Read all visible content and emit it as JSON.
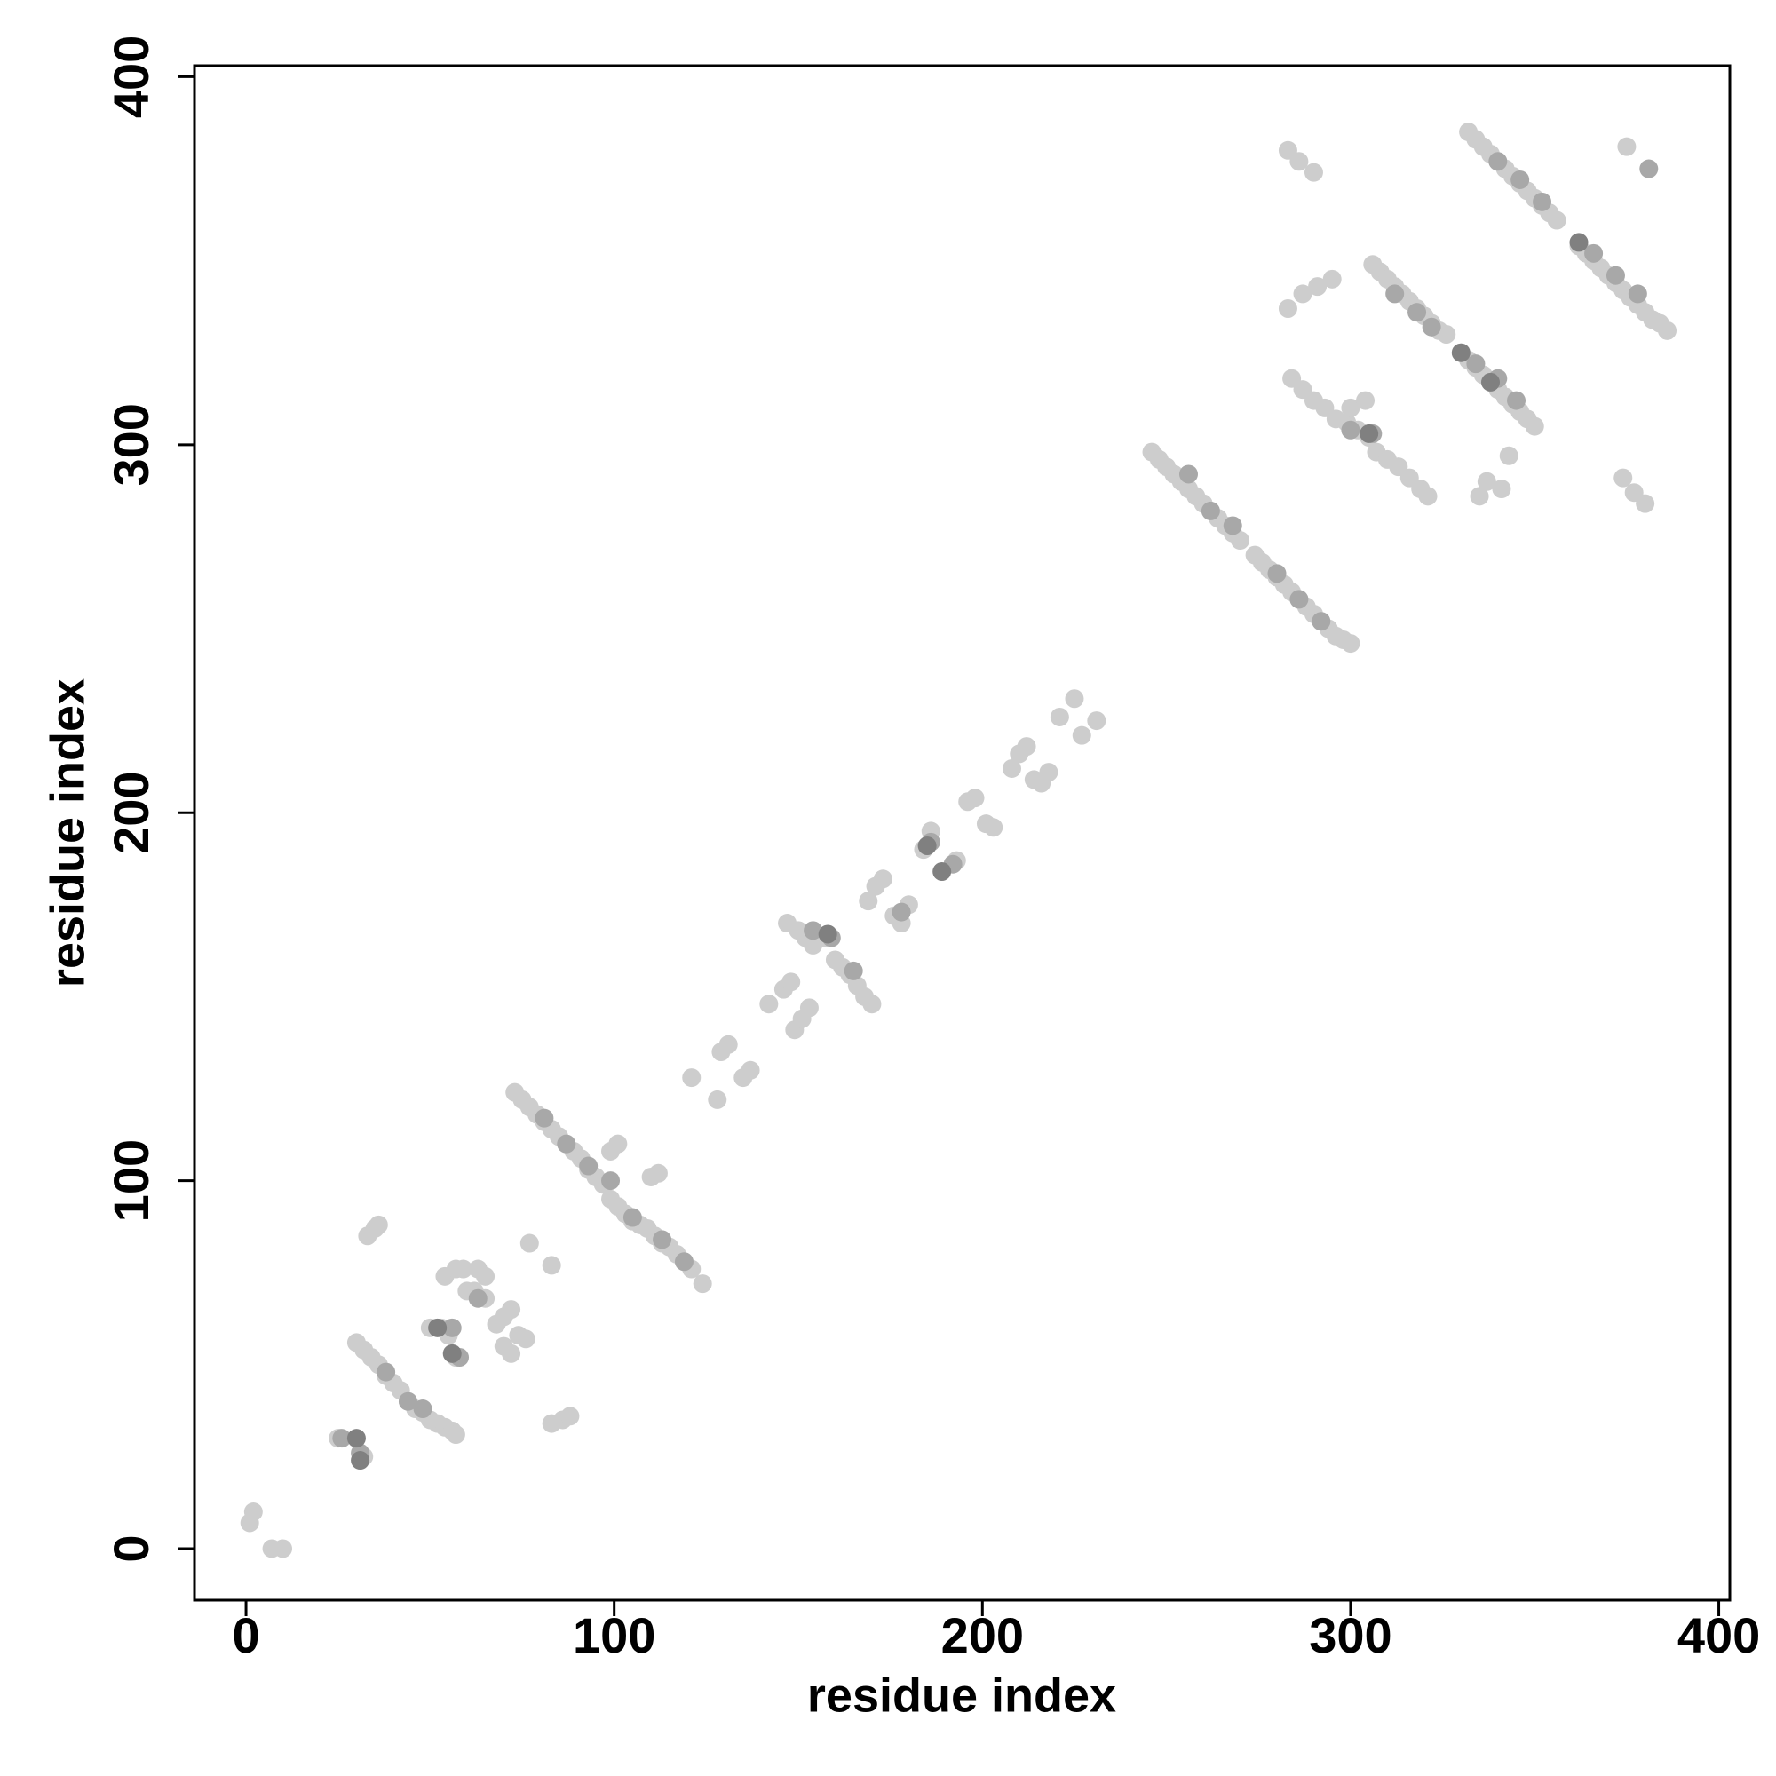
{
  "chart_data": {
    "type": "scatter",
    "xlabel": "residue index",
    "ylabel": "residue index",
    "xlim": [
      -14,
      403
    ],
    "ylim": [
      -14,
      403
    ],
    "xticks": [
      0,
      100,
      200,
      300,
      400
    ],
    "yticks": [
      0,
      100,
      200,
      300,
      400
    ],
    "series": [
      {
        "color": "#cdcdcd",
        "x": [
          2,
          1,
          7,
          10,
          25,
          32,
          30,
          32,
          34,
          36,
          38,
          40,
          42,
          44,
          46,
          48,
          50,
          52,
          54,
          56,
          57,
          33,
          35,
          36,
          50,
          53,
          55,
          57,
          60,
          62,
          63,
          65,
          68,
          70,
          72,
          74,
          76,
          70,
          72,
          54,
          57,
          59,
          65,
          77,
          83,
          83,
          86,
          88,
          73,
          75,
          77,
          79,
          81,
          83,
          85,
          87,
          89,
          91,
          93,
          95,
          97,
          99,
          101,
          103,
          105,
          107,
          109,
          111,
          113,
          115,
          117,
          119,
          121,
          124,
          99,
          101,
          110,
          112,
          121,
          128,
          129,
          131,
          135,
          137,
          142,
          146,
          148,
          149,
          151,
          153,
          147,
          150,
          152,
          154,
          157,
          160,
          162,
          164,
          166,
          168,
          170,
          169,
          171,
          173,
          176,
          178,
          180,
          184,
          186,
          193,
          196,
          198,
          201,
          203,
          208,
          210,
          212,
          214,
          216,
          218,
          221,
          225,
          227,
          231,
          246,
          248,
          250,
          252,
          254,
          256,
          258,
          260,
          262,
          264,
          266,
          268,
          270,
          274,
          276,
          278,
          280,
          282,
          284,
          286,
          288,
          290,
          292,
          294,
          296,
          298,
          300,
          283,
          286,
          290,
          283,
          287,
          291,
          295,
          284,
          287,
          290,
          293,
          296,
          299,
          302,
          305,
          307,
          310,
          313,
          316,
          319,
          321,
          300,
          304,
          306,
          308,
          310,
          312,
          314,
          316,
          318,
          320,
          322,
          324,
          326,
          330,
          332,
          334,
          336,
          338,
          340,
          342,
          344,
          346,
          348,
          350,
          332,
          334,
          336,
          338,
          340,
          342,
          344,
          346,
          348,
          350,
          352,
          354,
          356,
          362,
          364,
          366,
          368,
          370,
          372,
          374,
          376,
          378,
          380,
          382,
          384,
          386,
          335,
          337,
          341,
          343,
          374,
          377,
          380,
          375
        ],
        "values": [
          10,
          7,
          0,
          0,
          30,
          25,
          56,
          54,
          52,
          50,
          47,
          45,
          43,
          40,
          38,
          37,
          35,
          34,
          33,
          32,
          31,
          85,
          87,
          88,
          60,
          60,
          58,
          52,
          70,
          70,
          76,
          68,
          61,
          63,
          65,
          58,
          57,
          55,
          53,
          74,
          76,
          76,
          74,
          83,
          77,
          34,
          35,
          36,
          124,
          122,
          120,
          118,
          116,
          114,
          112,
          110,
          108,
          106,
          103,
          101,
          99,
          95,
          93,
          91,
          89,
          88,
          87,
          85,
          83,
          82,
          80,
          78,
          76,
          72,
          108,
          110,
          101,
          102,
          128,
          122,
          135,
          137,
          128,
          130,
          148,
          152,
          154,
          141,
          144,
          147,
          170,
          168,
          166,
          164,
          166,
          160,
          158,
          156,
          153,
          150,
          148,
          176,
          180,
          182,
          172,
          170,
          175,
          190,
          195,
          187,
          203,
          204,
          197,
          196,
          212,
          216,
          218,
          209,
          208,
          211,
          226,
          231,
          221,
          225,
          298,
          296,
          294,
          292,
          290,
          288,
          286,
          284,
          282,
          280,
          278,
          276,
          274,
          270,
          268,
          266,
          264,
          262,
          260,
          258,
          256,
          254,
          252,
          250,
          248,
          247,
          246,
          380,
          377,
          374,
          337,
          341,
          343,
          345,
          318,
          315,
          312,
          310,
          307,
          306,
          304,
          302,
          298,
          296,
          294,
          291,
          288,
          286,
          310,
          312,
          349,
          347,
          345,
          343,
          341,
          339,
          337,
          335,
          333,
          331,
          330,
          325,
          323,
          321,
          319,
          317,
          315,
          313,
          311,
          309,
          307,
          305,
          385,
          383,
          381,
          379,
          377,
          375,
          373,
          371,
          369,
          367,
          365,
          363,
          361,
          354,
          352,
          350,
          348,
          346,
          344,
          342,
          340,
          338,
          336,
          334,
          333,
          331,
          286,
          290,
          288,
          297,
          291,
          287,
          284,
          381
        ]
      },
      {
        "color": "#a8a8a8",
        "x": [
          31,
          26,
          38,
          44,
          48,
          56,
          58,
          63,
          81,
          87,
          93,
          99,
          105,
          113,
          119,
          154,
          159,
          165,
          178,
          186,
          192,
          256,
          262,
          268,
          280,
          286,
          292,
          300,
          306,
          312,
          318,
          322,
          334,
          340,
          345,
          340,
          346,
          352,
          366,
          372,
          378,
          381
        ],
        "values": [
          26,
          30,
          48,
          40,
          38,
          60,
          52,
          68,
          117,
          110,
          104,
          100,
          90,
          84,
          78,
          168,
          166,
          157,
          173,
          192,
          186,
          292,
          282,
          278,
          265,
          258,
          252,
          304,
          303,
          341,
          336,
          332,
          322,
          318,
          312,
          377,
          372,
          366,
          352,
          346,
          341,
          375
        ]
      },
      {
        "color": "#808080",
        "x": [
          31,
          30,
          52,
          56,
          158,
          185,
          189,
          305,
          330,
          338,
          362
        ],
        "values": [
          24,
          30,
          60,
          53,
          167,
          191,
          184,
          303,
          325,
          317,
          355
        ]
      }
    ]
  }
}
